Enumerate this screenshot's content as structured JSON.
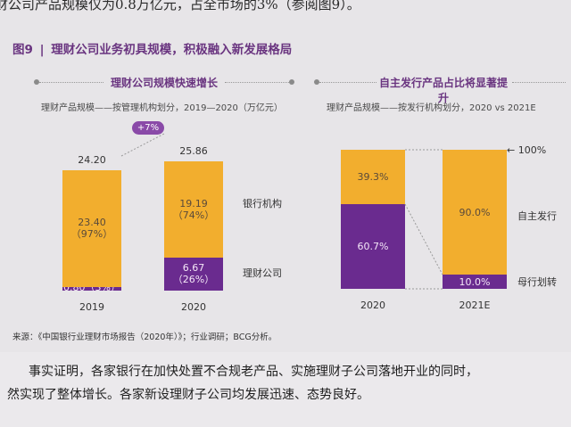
{
  "top_text": "财公司产品规模仅为0.8万亿元，占全市场的3%（参阅图9）。",
  "figure": {
    "number": "图9",
    "separator": "|",
    "title": "理财公司业务初具规模，积极融入新发展格局"
  },
  "left_panel": {
    "heading": "理财公司规模快速增长",
    "subcaption": "理财产品规模——按管理机构划分，2019—2020（万亿元）",
    "growth_badge": "+7%",
    "legend_top": "银行机构",
    "legend_bottom": "理财公司"
  },
  "right_panel": {
    "heading": "自主发行产品占比将显著提升",
    "subcaption": "理财产品规模——按发行机构划分，2020 vs 2021E",
    "marker_100": "100%",
    "legend_top": "自主发行",
    "legend_bottom": "母行划转"
  },
  "source": "来源：《中国银行业理财市场报告（2020年）》；行业调研；BCG分析。",
  "body_text": [
    "事实证明，各家银行在加快处置不合规老产品、实施理财子公司落地开业的同时，",
    "然实现了整体增长。各家新设理财子公司均发展迅速、态势良好。"
  ],
  "colors": {
    "gold": "#f2ae2e",
    "purple": "#6a2b8f",
    "accent": "#6a3580"
  },
  "chart_data": [
    {
      "type": "bar",
      "stacked": true,
      "categories": [
        "2019",
        "2020"
      ],
      "totals": [
        "24.20",
        "25.86"
      ],
      "series": [
        {
          "name": "理财公司",
          "values": [
            0.8,
            6.67
          ],
          "labels": [
            "0.80（3%）",
            "6.67\n（26%）"
          ],
          "color": "#6a2b8f"
        },
        {
          "name": "银行机构",
          "values": [
            23.4,
            19.19
          ],
          "labels": [
            "23.40\n（97%）",
            "19.19\n（74%）"
          ],
          "color": "#f2ae2e"
        }
      ],
      "ylim": [
        0,
        27
      ]
    },
    {
      "type": "bar",
      "stacked": true,
      "categories": [
        "2020",
        "2021E"
      ],
      "series": [
        {
          "name": "母行划转",
          "values": [
            60.7,
            10.0
          ],
          "labels": [
            "60.7%",
            "10.0%"
          ],
          "color": "#6a2b8f"
        },
        {
          "name": "自主发行",
          "values": [
            39.3,
            90.0
          ],
          "labels": [
            "39.3%",
            "90.0%"
          ],
          "color": "#f2ae2e"
        }
      ],
      "ylim": [
        0,
        100
      ]
    }
  ]
}
